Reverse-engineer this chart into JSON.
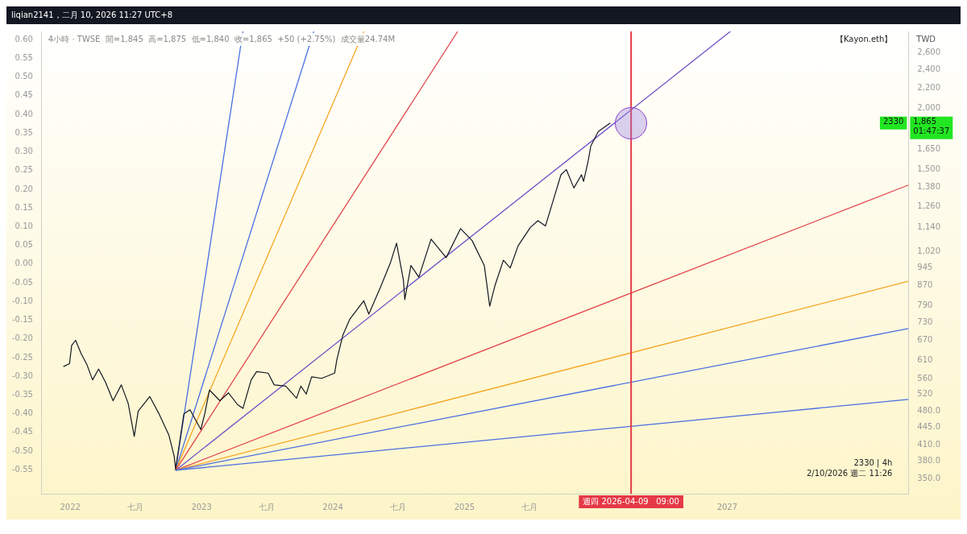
{
  "chart_data": {
    "type": "line",
    "title": "liqian2141，二月 10, 2026 11:27 UTC+8",
    "subtitle": "4小時 · TWSE  開=1,845  高=1,875  低=1,840  收=1,865  +50 (+2.75%)  成交量24.74M",
    "ylabel": "TWD",
    "log": "y",
    "grid": false,
    "legend": false,
    "xlim": [
      "2021-10-14",
      "2028-05-19"
    ],
    "xticks": [
      {
        "value": "2022-01-01",
        "label": "2022"
      },
      {
        "value": "2022-07-01",
        "label": "七月"
      },
      {
        "value": "2023-01-01",
        "label": "2023"
      },
      {
        "value": "2023-07-01",
        "label": "七月"
      },
      {
        "value": "2024-01-01",
        "label": "2024"
      },
      {
        "value": "2024-07-01",
        "label": "七月"
      },
      {
        "value": "2025-01-01",
        "label": "2025"
      },
      {
        "value": "2025-07-01",
        "label": "七月"
      },
      {
        "value": "2027-01-01",
        "label": "2027"
      }
    ],
    "ylim": [
      326,
      2870
    ],
    "yticks": [
      {
        "value": 2600,
        "label": "2,600"
      },
      {
        "value": 2400,
        "label": "2,400"
      },
      {
        "value": 2200,
        "label": "2,200"
      },
      {
        "value": 2000,
        "label": "2,000"
      },
      {
        "value": 1650,
        "label": "1,650"
      },
      {
        "value": 1500,
        "label": "1,500"
      },
      {
        "value": 1380,
        "label": "1,380"
      },
      {
        "value": 1260,
        "label": "1,260"
      },
      {
        "value": 1140,
        "label": "1,140"
      },
      {
        "value": 1020,
        "label": "1,020"
      },
      945,
      870,
      790,
      730,
      670,
      610,
      560,
      520,
      {
        "value": 480,
        "label": "480.0"
      },
      {
        "value": 445,
        "label": "445.0"
      },
      {
        "value": 410,
        "label": "410.0"
      },
      {
        "value": 380,
        "label": "380.0"
      },
      {
        "value": 350,
        "label": "350.0"
      }
    ],
    "y2lim": [
      -0.614,
      0.622
    ],
    "y2ticks": [
      {
        "value": 0.6,
        "label": "0.60"
      },
      {
        "value": 0.55,
        "label": "0.55"
      },
      {
        "value": 0.5,
        "label": "0.50"
      },
      {
        "value": 0.45,
        "label": "0.45"
      },
      {
        "value": 0.4,
        "label": "0.40"
      },
      {
        "value": 0.35,
        "label": "0.35"
      },
      {
        "value": 0.3,
        "label": "0.30"
      },
      {
        "value": 0.25,
        "label": "0.25"
      },
      {
        "value": 0.2,
        "label": "0.20"
      },
      {
        "value": 0.15,
        "label": "0.15"
      },
      {
        "value": 0.1,
        "label": "0.10"
      },
      {
        "value": 0.05,
        "label": "0.05"
      },
      {
        "value": 0,
        "label": "0.00"
      },
      {
        "value": -0.05,
        "label": "-0.05"
      },
      {
        "value": -0.1,
        "label": "-0.10"
      },
      {
        "value": -0.15,
        "label": "-0.15"
      },
      {
        "value": -0.2,
        "label": "-0.20"
      },
      {
        "value": -0.25,
        "label": "-0.25"
      },
      {
        "value": -0.3,
        "label": "-0.30"
      },
      {
        "value": -0.35,
        "label": "-0.35"
      },
      {
        "value": -0.4,
        "label": "-0.40"
      },
      {
        "value": -0.45,
        "label": "-0.45"
      },
      {
        "value": -0.5,
        "label": "-0.50"
      },
      {
        "value": -0.55,
        "label": "-0.55"
      }
    ],
    "series": [
      {
        "color": "#131722",
        "x": [
          "2021-12-13",
          "2021-12-30",
          "2022-01-05",
          "2022-01-16",
          "2022-01-31",
          "2022-02-17",
          "2022-03-04",
          "2022-03-21",
          "2022-04-09",
          "2022-04-30",
          "2022-05-23",
          "2022-06-11",
          "2022-06-28",
          "2022-07-09",
          "2022-08-10",
          "2022-09-04",
          "2022-10-02",
          "2022-10-17",
          "2022-10-21",
          "2022-11-13",
          "2022-11-30",
          "2022-12-30",
          "2023-01-10",
          "2023-01-23",
          "2023-02-21",
          "2023-03-17",
          "2023-04-11",
          "2023-04-26",
          "2023-05-19",
          "2023-06-03",
          "2023-07-05",
          "2023-07-22",
          "2023-08-23",
          "2023-09-22",
          "2023-10-04",
          "2023-10-19",
          "2023-11-03",
          "2023-12-01",
          "2024-01-06",
          "2024-01-12",
          "2024-01-29",
          "2024-02-17",
          "2024-03-27",
          "2024-04-10",
          "2024-05-12",
          "2024-06-09",
          "2024-06-26",
          "2024-07-15",
          "2024-07-19",
          "2024-08-05",
          "2024-08-27",
          "2024-09-30",
          "2024-11-11",
          "2024-12-21",
          "2025-01-22",
          "2025-02-25",
          "2025-03-12",
          "2025-03-27",
          "2025-04-19",
          "2025-05-08",
          "2025-05-30",
          "2025-07-03",
          "2025-07-24",
          "2025-08-14",
          "2025-09-04",
          "2025-09-26",
          "2025-10-11",
          "2025-11-01",
          "2025-11-22",
          "2025-11-28",
          "2025-12-11",
          "2025-12-18",
          "2026-01-08",
          "2026-02-10"
        ],
        "values": [
          593,
          601,
          655,
          671,
          631,
          597,
          557,
          586,
          551,
          505,
          544,
          499,
          427,
          481,
          515,
          476,
          430,
          389,
          366,
          475,
          484,
          441,
          475,
          531,
          505,
          524,
          496,
          487,
          557,
          579,
          575,
          544,
          541,
          511,
          541,
          521,
          565,
          561,
          575,
          612,
          688,
          741,
          808,
          759,
          860,
          966,
          1060,
          892,
          813,
          954,
          903,
          1080,
          990,
          1135,
          1073,
          954,
          788,
          870,
          978,
          943,
          1047,
          1141,
          1178,
          1149,
          1292,
          1462,
          1498,
          1374,
          1462,
          1417,
          1564,
          1674,
          1792,
          1865
        ]
      },
      {
        "color": "#4a6fe3",
        "x": [
          "2022-10-21",
          "2028-05-19"
        ],
        "values": [
          364,
          508
        ]
      },
      {
        "color": "#4a6fe3",
        "x": [
          "2022-10-21",
          "2028-05-19"
        ],
        "values": [
          364,
          709
        ]
      },
      {
        "color": "#f5a623",
        "x": [
          "2022-10-21",
          "2028-05-19"
        ],
        "values": [
          364,
          886
        ]
      },
      {
        "color": "#e2474b",
        "x": [
          "2022-10-21",
          "2028-05-19"
        ],
        "values": [
          364,
          1393
        ]
      },
      {
        "color": "#6b4fc8",
        "x": [
          "2022-10-21",
          "2027-01-10"
        ],
        "values": [
          364,
          2870
        ]
      },
      {
        "color": "#e2474b",
        "x": [
          "2022-10-21",
          "2024-12-13"
        ],
        "values": [
          364,
          2870
        ]
      },
      {
        "color": "#f5a623",
        "x": [
          "2022-10-21",
          "2024-03-27"
        ],
        "values": [
          364,
          2870
        ]
      },
      {
        "color": "#4a6fe3",
        "x": [
          "2022-10-21",
          "2023-11-09"
        ],
        "values": [
          364,
          2870
        ]
      },
      {
        "color": "#4a6fe3",
        "x": [
          "2022-10-21",
          "2023-04-26"
        ],
        "values": [
          364,
          2870
        ]
      }
    ],
    "ref_lines": [
      {
        "axis": "x",
        "value": "2026-04-09",
        "label": "週四 2026-04-09   09:00",
        "color": "#e53946"
      }
    ],
    "annotations": [
      "【Kayon.eth】",
      "2330 | 4h",
      "2/10/2026 週二 11:26",
      {
        "text": "2330",
        "y": 1865
      },
      "1,865\n01:47:37"
    ]
  }
}
